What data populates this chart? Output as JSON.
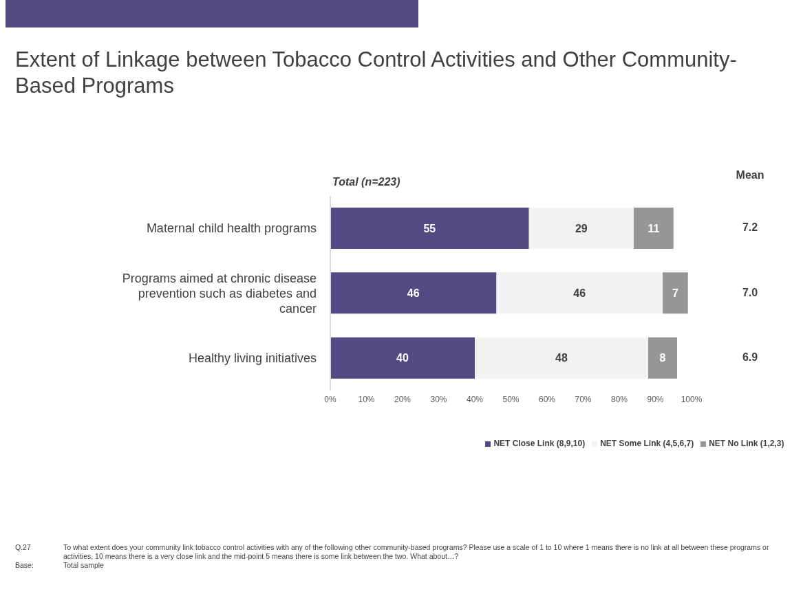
{
  "chart_data": {
    "type": "bar",
    "orientation": "horizontal",
    "stacked": true,
    "title": "Extent of Linkage between Tobacco Control Activities and Other Community-Based Programs",
    "categories": [
      "Maternal child health programs",
      "Programs aimed at chronic disease prevention such as diabetes and cancer",
      "Healthy living initiatives"
    ],
    "series": [
      {
        "name": "NET Close Link (8,9,10)",
        "color": "#524a82",
        "values": [
          55,
          46,
          40
        ]
      },
      {
        "name": "NET Some Link (4,5,6,7)",
        "color": "#f2f2f2",
        "values": [
          29,
          46,
          48
        ]
      },
      {
        "name": "NET No Link (1,2,3)",
        "color": "#969696",
        "values": [
          11,
          7,
          8
        ]
      }
    ],
    "xlim": [
      0,
      100
    ],
    "xticks": [
      {
        "value": 0,
        "label": "0%"
      },
      {
        "value": 10,
        "label": "10%"
      },
      {
        "value": 20,
        "label": "20%"
      },
      {
        "value": 30,
        "label": "30%"
      },
      {
        "value": 40,
        "label": "40%"
      },
      {
        "value": 50,
        "label": "50%"
      },
      {
        "value": 60,
        "label": "60%"
      },
      {
        "value": 70,
        "label": "70%"
      },
      {
        "value": 80,
        "label": "80%"
      },
      {
        "value": 90,
        "label": "90%"
      },
      {
        "value": 100,
        "label": "100%"
      }
    ],
    "data_labels": true,
    "legend": "bottom",
    "annotations": [
      "Total (n=223)",
      "Mean",
      "7.2",
      "7.0",
      "6.9",
      "Q.27",
      "To what extent does your community link tobacco control activities with any of the following other community-based programs?  Please use a scale of 1 to 10 where 1 means there is no link at all between these programs or activities, 10 means there is a very close link and the mid-point 5 means there is some link between the two.  What about…?",
      "Base:",
      "Total sample"
    ]
  }
}
